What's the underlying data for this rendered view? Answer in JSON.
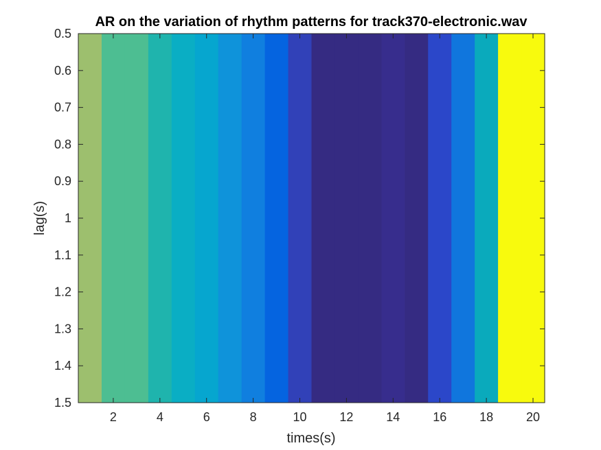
{
  "chart_data": {
    "type": "heatmap",
    "title": "AR on the variation of rhythm patterns for track370-electronic.wav",
    "xlabel": "times(s)",
    "ylabel": "lag(s)",
    "xlim": [
      0.5,
      20.5
    ],
    "ylim": [
      0.5,
      1.5
    ],
    "y_reversed": true,
    "grid": false,
    "x_ticks": [
      2,
      4,
      6,
      8,
      10,
      12,
      14,
      16,
      18,
      20
    ],
    "x_tick_labels": [
      "2",
      "4",
      "6",
      "8",
      "10",
      "12",
      "14",
      "16",
      "18",
      "20"
    ],
    "y_ticks": [
      0.5,
      0.6,
      0.7,
      0.8,
      0.9,
      1.0,
      1.1,
      1.2,
      1.3,
      1.4,
      1.5
    ],
    "y_tick_labels": [
      "0.5",
      "0.6",
      "0.7",
      "0.8",
      "0.9",
      "1",
      "1.1",
      "1.2",
      "1.3",
      "1.4",
      "1.5"
    ],
    "colormap": "parula",
    "cells": [
      {
        "x": 1,
        "color": "#9dbf6e"
      },
      {
        "x": 2,
        "color": "#4dbe92"
      },
      {
        "x": 3,
        "color": "#4dbe92"
      },
      {
        "x": 4,
        "color": "#1fb4ad"
      },
      {
        "x": 5,
        "color": "#0aaec4"
      },
      {
        "x": 6,
        "color": "#06a6cf"
      },
      {
        "x": 7,
        "color": "#0f93da"
      },
      {
        "x": 8,
        "color": "#107fdf"
      },
      {
        "x": 9,
        "color": "#0564e0"
      },
      {
        "x": 10,
        "color": "#3141b8"
      },
      {
        "x": 11,
        "color": "#352b82"
      },
      {
        "x": 12,
        "color": "#352b82"
      },
      {
        "x": 13,
        "color": "#352b82"
      },
      {
        "x": 14,
        "color": "#372d8d"
      },
      {
        "x": 15,
        "color": "#352b82"
      },
      {
        "x": 16,
        "color": "#2b47c9"
      },
      {
        "x": 17,
        "color": "#1076dd"
      },
      {
        "x": 18,
        "color": "#0aaabc"
      },
      {
        "x": 19,
        "color": "#f8fa0d"
      },
      {
        "x": 20,
        "color": "#f8fa0d"
      }
    ]
  }
}
